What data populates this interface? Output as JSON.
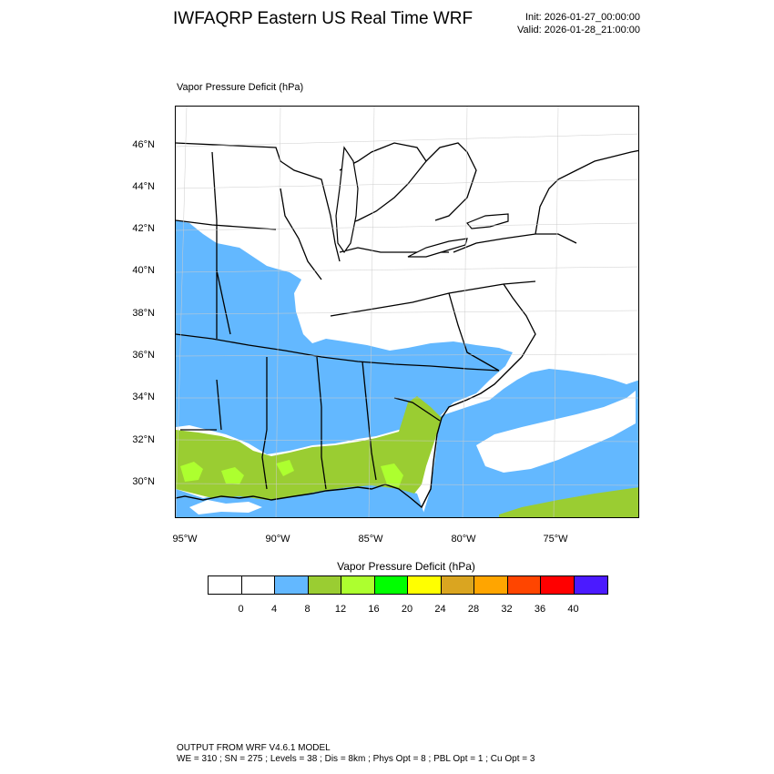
{
  "header": {
    "title": "IWFAQRP Eastern US Real Time WRF",
    "init": "Init: 2026-01-27_00:00:00",
    "valid": "Valid: 2026-01-28_21:00:00"
  },
  "map": {
    "subtitle": "Vapor Pressure Deficit   (hPa)",
    "lat_labels": [
      "46°N",
      "44°N",
      "42°N",
      "40°N",
      "38°N",
      "36°N",
      "34°N",
      "32°N",
      "30°N"
    ],
    "lon_labels": [
      "95°W",
      "90°W",
      "85°W",
      "80°W",
      "75°W"
    ],
    "colors": {
      "ocean_zero": "#ffffff",
      "vpd_4_8": "#63b8ff",
      "vpd_8_12": "#9acd32",
      "vpd_12_16": "#adff2f",
      "borders": "#000000"
    }
  },
  "legend": {
    "title": "Vapor Pressure Deficit  (hPa)",
    "tick_labels": [
      "0",
      "4",
      "8",
      "12",
      "16",
      "20",
      "24",
      "28",
      "32",
      "36",
      "40"
    ],
    "colors": [
      "#ffffff",
      "#ffffff",
      "#63b8ff",
      "#9acd32",
      "#adff2f",
      "#00ff00",
      "#ffff00",
      "#daa520",
      "#ffa500",
      "#ff4500",
      "#ff0000",
      "#4b1aff"
    ]
  },
  "footer": {
    "line1": "OUTPUT FROM WRF V4.6.1 MODEL",
    "line2": "WE = 310 ; SN = 275 ; Levels = 38 ; Dis = 8km ; Phys Opt = 8 ; PBL Opt = 1 ; Cu Opt = 3"
  }
}
